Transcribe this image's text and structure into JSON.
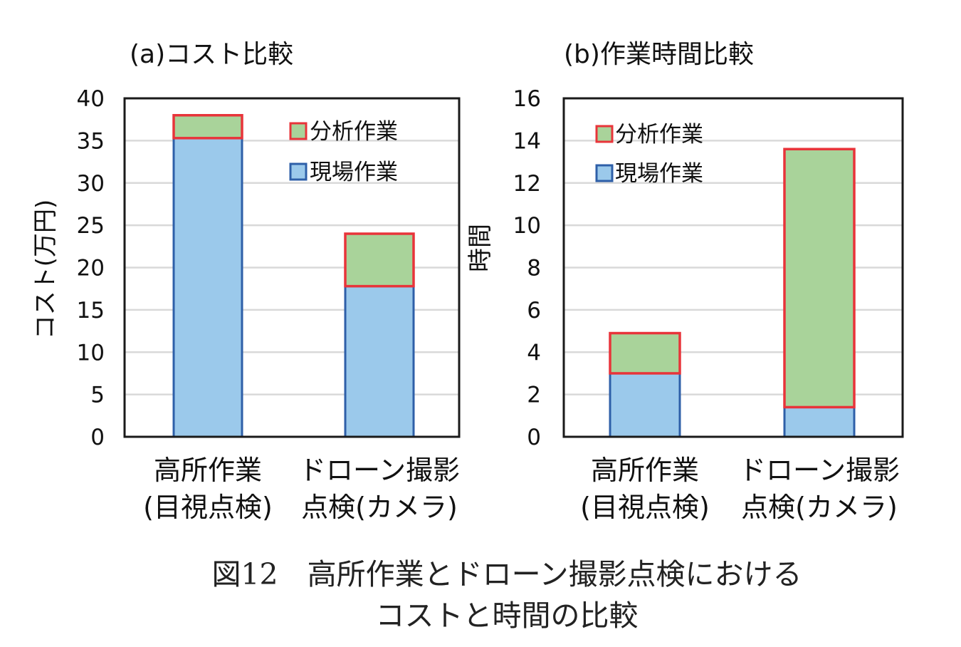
{
  "chart_data": [
    {
      "type": "bar",
      "stacked": true,
      "title": "(a)コスト比較",
      "ylabel": "コスト(万円)",
      "ylim": [
        0,
        40
      ],
      "ticks": [
        0,
        5,
        10,
        15,
        20,
        25,
        30,
        35,
        40
      ],
      "categories": [
        [
          "高所作業",
          "(目視点検)"
        ],
        [
          "ドローン撮影",
          "点検(カメラ)"
        ]
      ],
      "series": [
        {
          "name": "現場作業",
          "values": [
            35.3,
            17.8
          ]
        },
        {
          "name": "分析作業",
          "values": [
            2.7,
            6.2
          ]
        }
      ],
      "grid": true,
      "legend": "top-right"
    },
    {
      "type": "bar",
      "stacked": true,
      "title": "(b)作業時間比較",
      "ylabel": "時間",
      "ylim": [
        0,
        16
      ],
      "ticks": [
        0,
        2,
        4,
        6,
        8,
        10,
        12,
        14,
        16
      ],
      "categories": [
        [
          "高所作業",
          "(目視点検)"
        ],
        [
          "ドローン撮影",
          "点検(カメラ)"
        ]
      ],
      "series": [
        {
          "name": "現場作業",
          "values": [
            3.0,
            1.4
          ]
        },
        {
          "name": "分析作業",
          "values": [
            1.9,
            12.2
          ]
        }
      ],
      "grid": true,
      "legend": "top-left"
    }
  ],
  "caption": {
    "line1": "図12　高所作業とドローン撮影点検における",
    "line2": "コストと時間の比較"
  },
  "colors": {
    "field": "#9bc9eb",
    "field_edge": "#2e5fa8",
    "analysis": "#a9d39a",
    "analysis_edge": "#e8343a",
    "grid": "#d9d9d9",
    "axis": "#1a1a1a"
  }
}
